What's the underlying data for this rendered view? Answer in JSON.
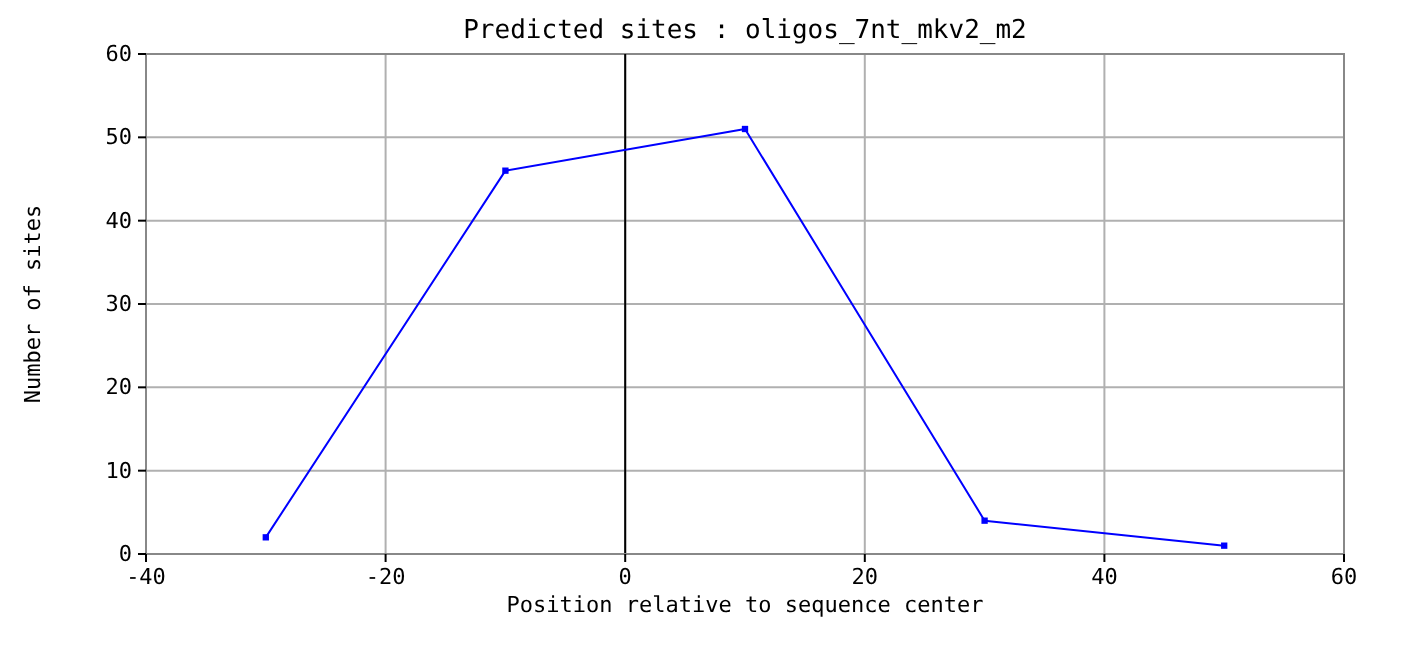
{
  "chart_data": {
    "type": "line",
    "title": "Predicted sites : oligos_7nt_mkv2_m2",
    "xlabel": "Position relative to sequence center",
    "ylabel": "Number of sites",
    "x": [
      -30,
      -10,
      10,
      30,
      50
    ],
    "series": [
      {
        "color": "#0000ff",
        "values": [
          2,
          46,
          51,
          4,
          1
        ]
      }
    ],
    "xlim": [
      -40,
      60
    ],
    "xticks": [
      -40,
      -20,
      0,
      20,
      40,
      60
    ],
    "ylim": [
      0,
      60
    ],
    "yticks": [
      0,
      10,
      20,
      30,
      40,
      50,
      60
    ],
    "grid": true,
    "marker": "square",
    "line_style": "solid",
    "ref_lines": [
      {
        "axis": "x",
        "value": 0,
        "color": "#000000"
      }
    ]
  }
}
